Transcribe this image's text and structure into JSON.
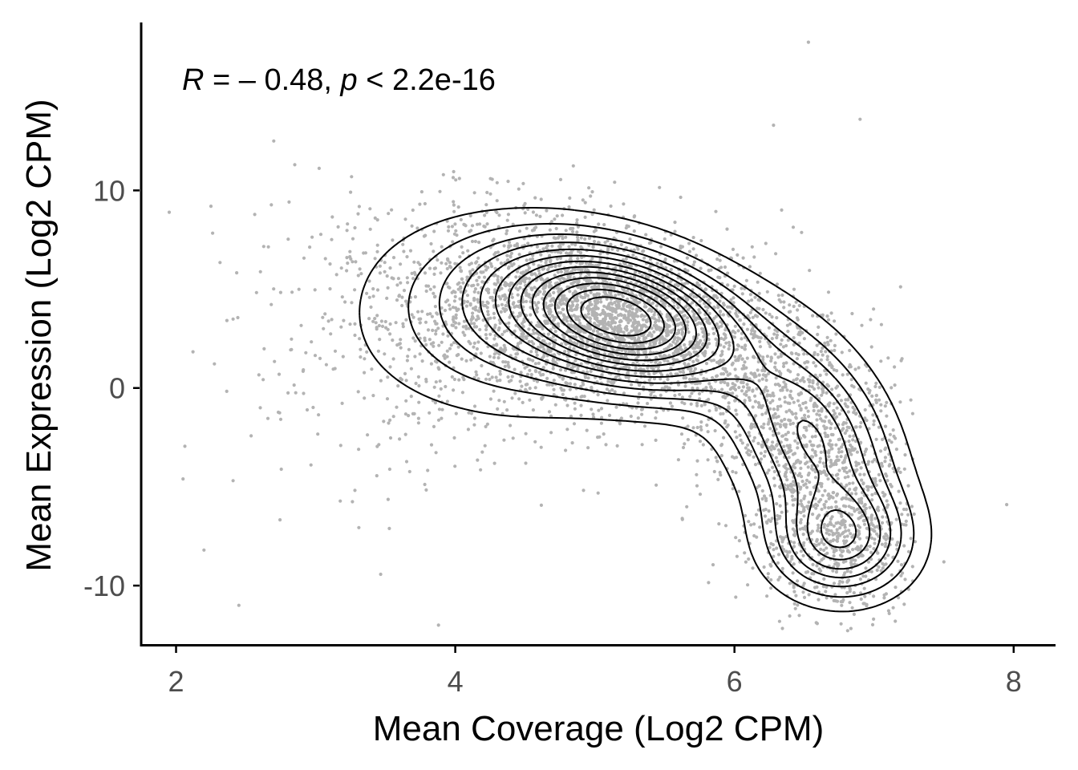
{
  "chart_data": {
    "type": "scatter",
    "title": "",
    "xlabel": "Mean Coverage (Log2 CPM)",
    "ylabel": "Mean Expression (Log2 CPM)",
    "xlim": [
      1.75,
      8.3
    ],
    "ylim": [
      -13,
      18.5
    ],
    "x_ticks": [
      2,
      4,
      6,
      8
    ],
    "y_ticks": [
      -10,
      0,
      10
    ],
    "x_tick_labels": [
      "2",
      "4",
      "6",
      "8"
    ],
    "y_tick_labels": [
      "-10",
      "0",
      "10"
    ],
    "grid": false,
    "legend": "none",
    "annotation": {
      "r_symbol": "R",
      "r_text": " = – 0.48, ",
      "p_symbol": "p",
      "p_text": " < 2.2e-16"
    },
    "point_color": "#b3b3b3",
    "contour_color": "#000000",
    "density_mode": {
      "x": 5.2,
      "y": 3.5
    },
    "correlation": -0.48,
    "outliers": [
      {
        "x": 6.53,
        "y": 17.5
      },
      {
        "x": 6.9,
        "y": 13.6
      },
      {
        "x": 7.95,
        "y": -5.9
      },
      {
        "x": 2.7,
        "y": 12.5
      },
      {
        "x": 6.28,
        "y": 13.3
      },
      {
        "x": 3.88,
        "y": -12.0
      },
      {
        "x": 2.45,
        "y": -11.0
      },
      {
        "x": 2.05,
        "y": -4.6
      },
      {
        "x": 2.2,
        "y": -8.2
      },
      {
        "x": 7.5,
        "y": -8.8
      },
      {
        "x": 2.85,
        "y": 11.3
      },
      {
        "x": 2.25,
        "y": 9.2
      }
    ]
  }
}
